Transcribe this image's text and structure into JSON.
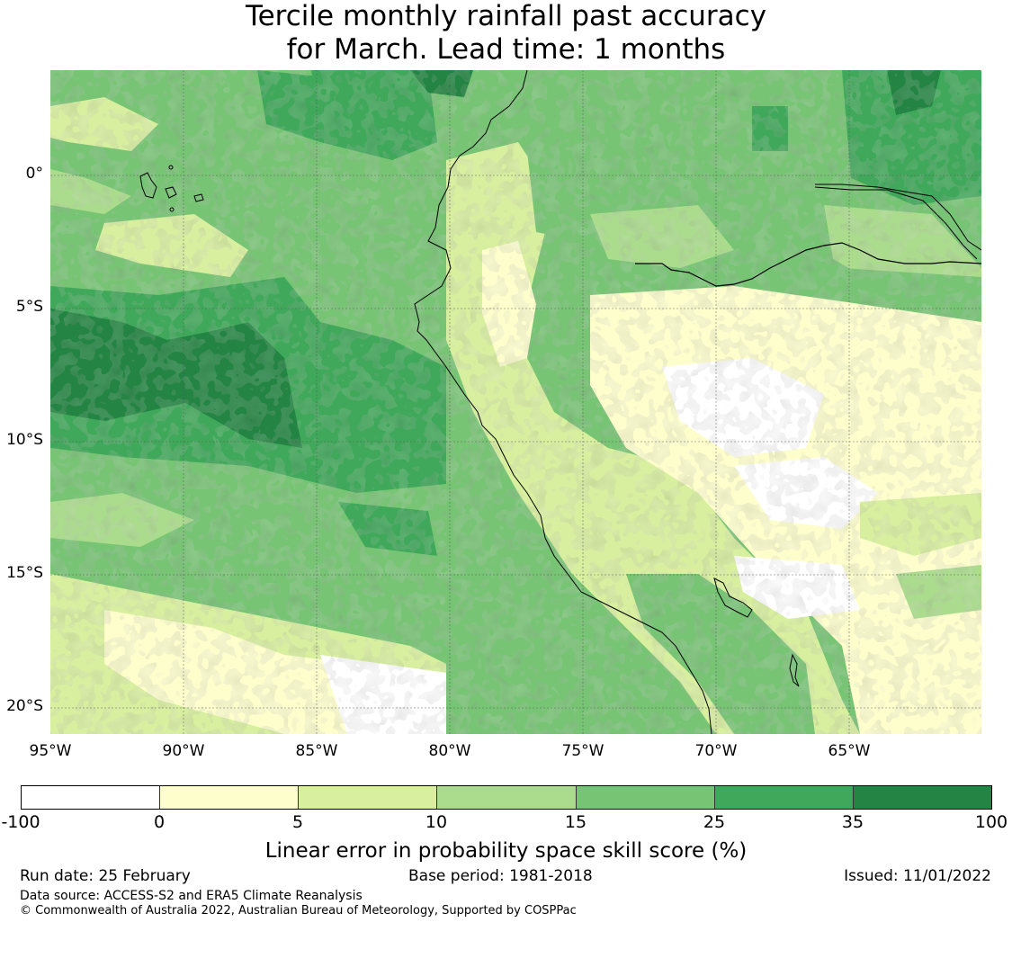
{
  "title_line1": "Tercile monthly rainfall past accuracy",
  "title_line2": "for March. Lead time: 1 months",
  "lat_labels": [
    "0°",
    "5°S",
    "10°S",
    "15°S",
    "20°S"
  ],
  "lon_labels": [
    "95°W",
    "90°W",
    "85°W",
    "80°W",
    "75°W",
    "70°W",
    "65°W"
  ],
  "colorbar": {
    "ticks": [
      "-100",
      "0",
      "5",
      "10",
      "15",
      "25",
      "35",
      "100"
    ],
    "colors": [
      "#ffffff",
      "#fefecd",
      "#d8ef9f",
      "#abdc8d",
      "#78c475",
      "#40a85a",
      "#238443"
    ],
    "label": "Linear error in probability space skill score (%)"
  },
  "footer": {
    "run_date": "Run date: 25 February",
    "base_period": "Base period: 1981-2018",
    "issued": "Issued: 11/01/2022",
    "data_source": "Data source: ACCESS-S2 and ERA5 Climate Reanalysis",
    "copyright": "© Commonwealth of Australia 2022, Australian Bureau of Meteorology, Supported by COSPPac"
  }
}
